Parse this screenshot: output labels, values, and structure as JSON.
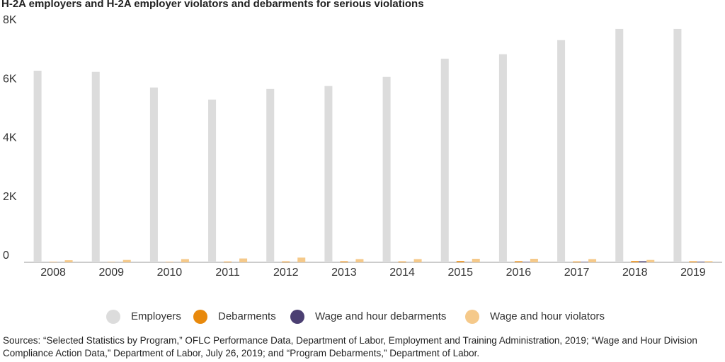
{
  "chart_data": {
    "type": "bar",
    "title": "H-2A employers and H-2A employer violators and debarments for serious violations",
    "categories": [
      "2008",
      "2009",
      "2010",
      "2011",
      "2012",
      "2013",
      "2014",
      "2015",
      "2016",
      "2017",
      "2018",
      "2019"
    ],
    "series": [
      {
        "name": "Employers",
        "color": "#dcdcdc",
        "values": [
          6510,
          6470,
          5940,
          5530,
          5890,
          5990,
          6300,
          6920,
          7070,
          7550,
          7930,
          7930
        ]
      },
      {
        "name": "Debarments",
        "color": "#e8890c",
        "values": [
          10,
          8,
          10,
          20,
          25,
          30,
          25,
          40,
          35,
          25,
          40,
          30
        ]
      },
      {
        "name": "Wage and hour debarments",
        "color": "#4b3f72",
        "values": [
          0,
          0,
          0,
          0,
          0,
          0,
          0,
          5,
          15,
          15,
          35,
          20
        ]
      },
      {
        "name": "Wage and hour violators",
        "color": "#f5c98a",
        "values": [
          70,
          80,
          110,
          130,
          160,
          110,
          110,
          120,
          120,
          110,
          80,
          40
        ]
      }
    ],
    "ylim": [
      0,
      8000
    ],
    "yticks": [
      0,
      {
        "value": 2000,
        "label": "2K"
      },
      {
        "value": 4000,
        "label": "4K"
      },
      {
        "value": 6000,
        "label": "6K"
      },
      {
        "value": 8000,
        "label": "8K"
      }
    ],
    "grid": false,
    "source": "Sources: “Selected Statistics by Program,” OFLC Performance Data, Department of Labor, Employment and Training Administration, 2019; “Wage and Hour Division Compliance Action Data,” Department of Labor, July 26, 2019; and “Program Debarments,” Department of Labor."
  }
}
